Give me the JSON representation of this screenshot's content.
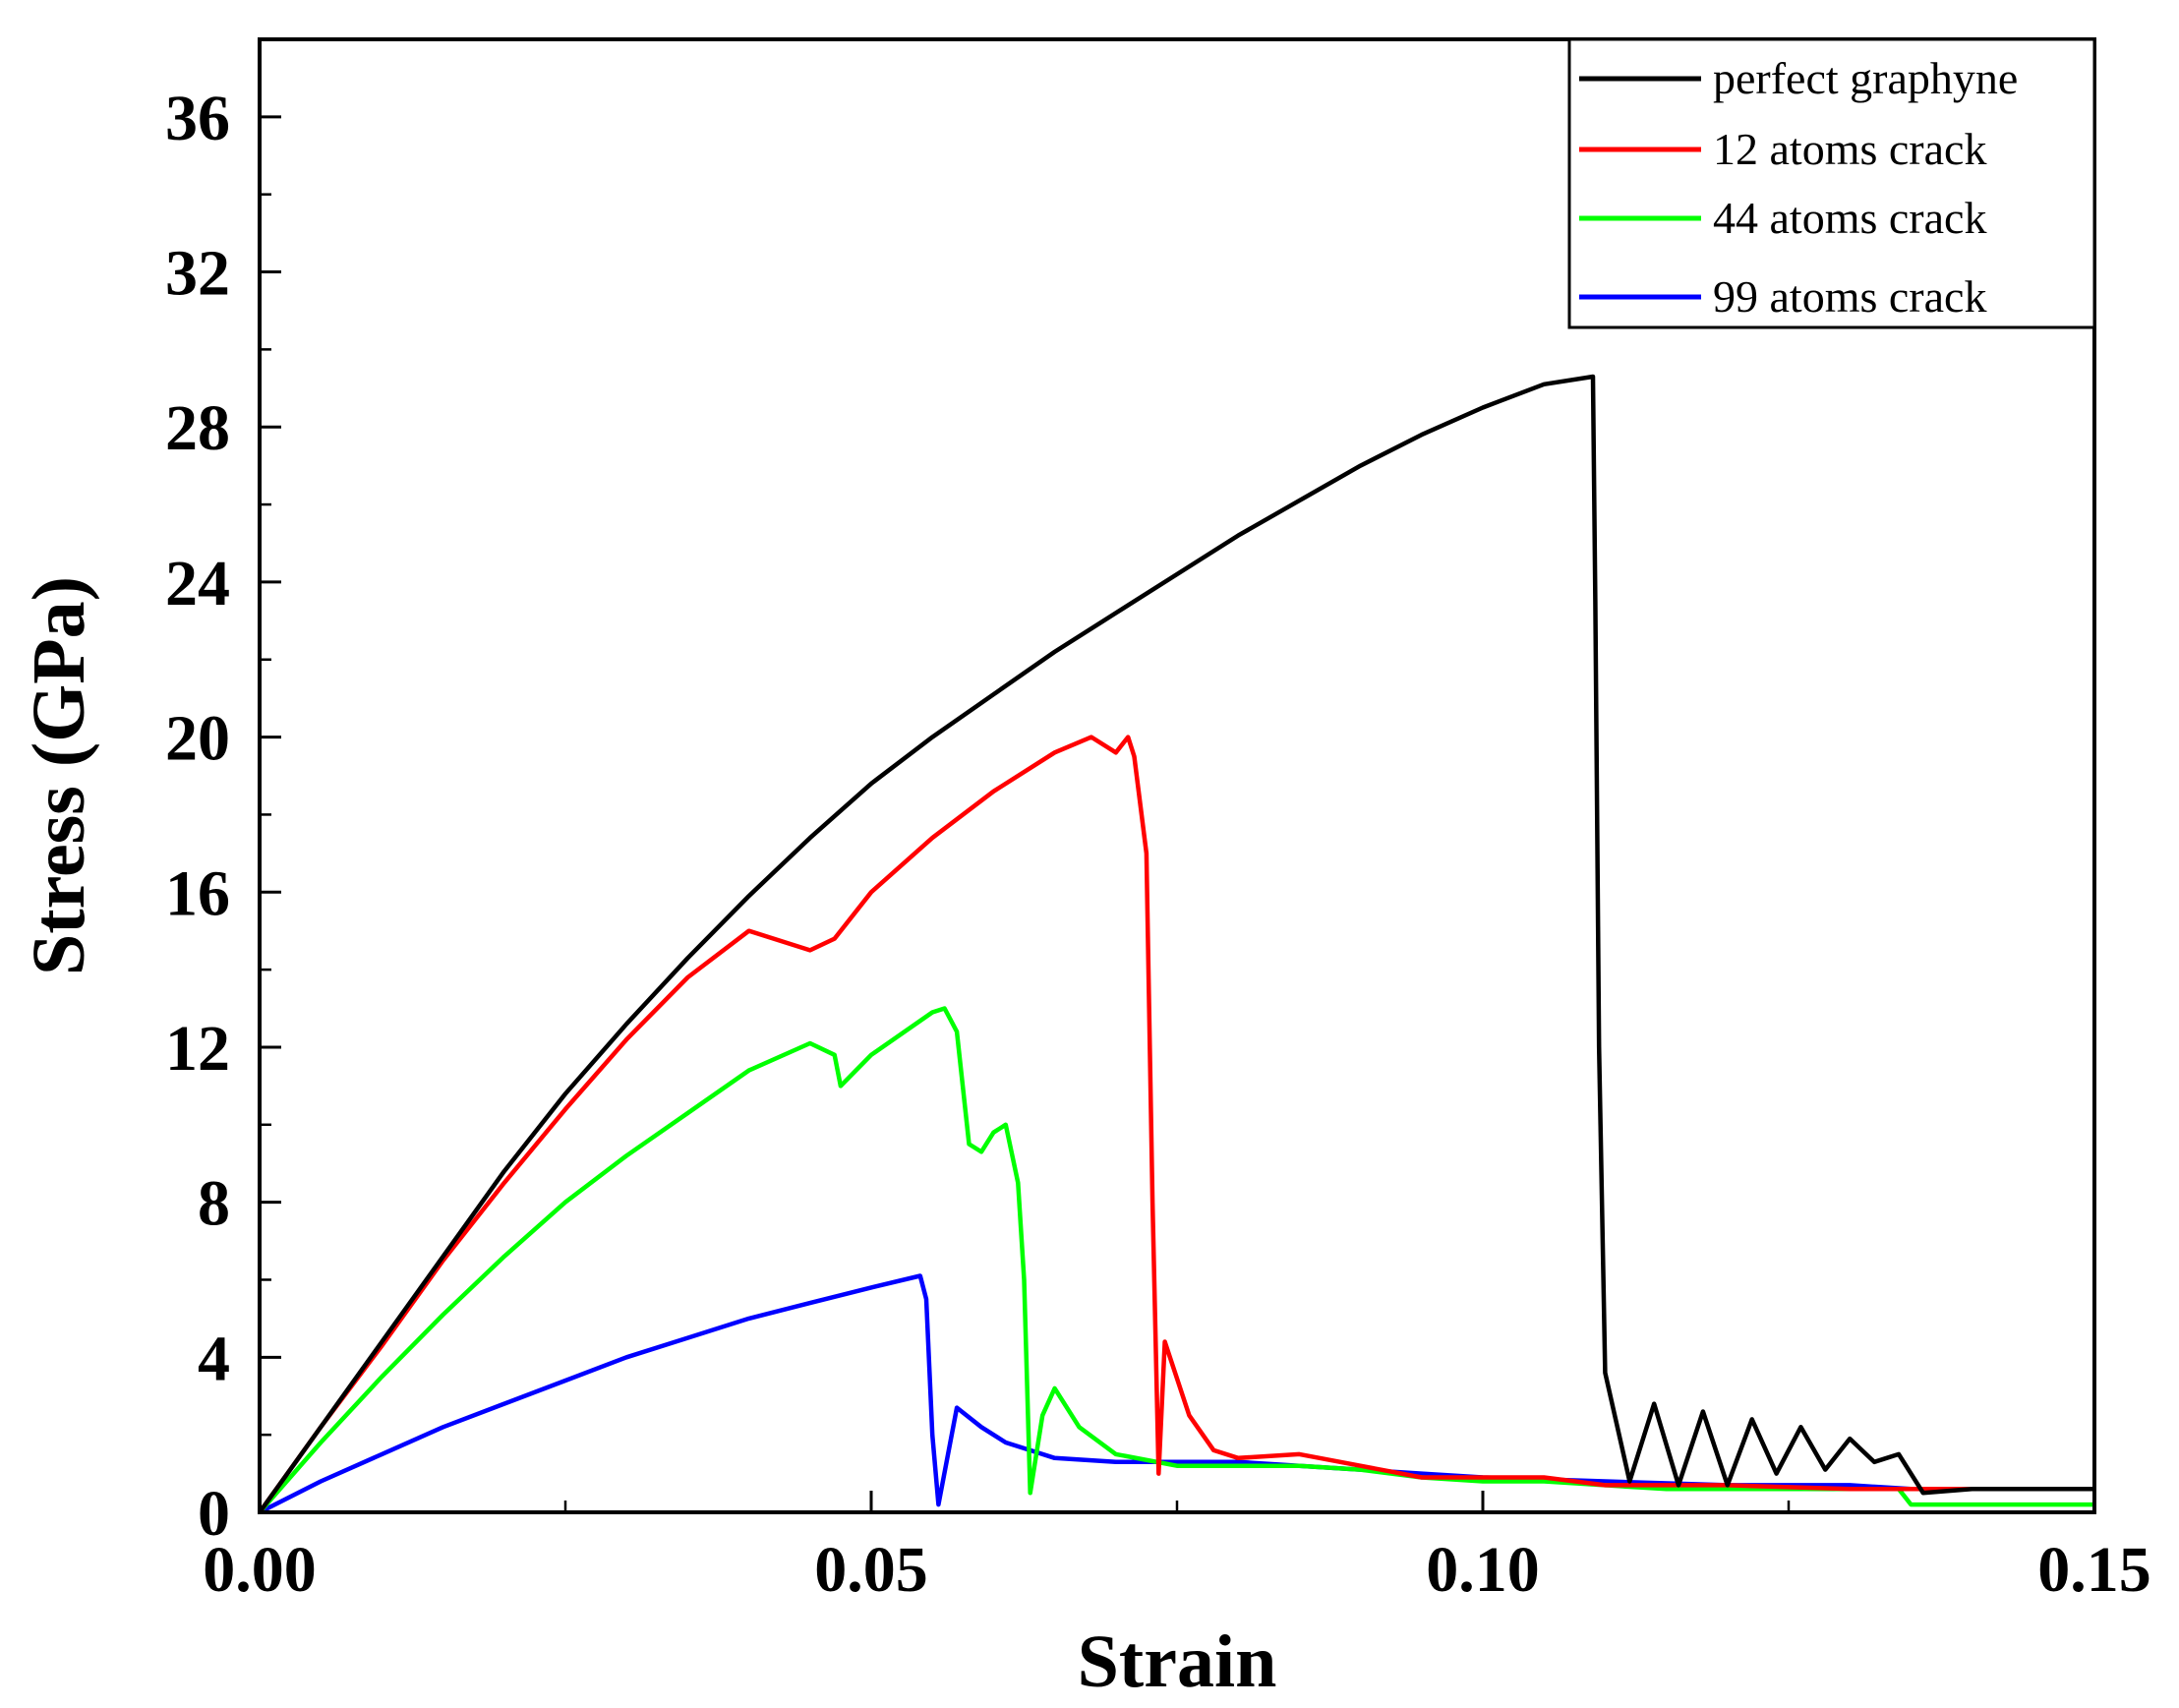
{
  "chart_data": {
    "type": "line",
    "title": "",
    "xlabel": "Strain",
    "ylabel": "Stress (GPa)",
    "xlim": [
      0,
      0.15
    ],
    "ylim": [
      0,
      38
    ],
    "xticks": [
      0.0,
      0.05,
      0.1,
      0.15
    ],
    "xtick_labels": [
      "0.00",
      "0.05",
      "0.10",
      "0.15"
    ],
    "yticks": [
      0,
      4,
      8,
      12,
      16,
      20,
      24,
      28,
      32,
      36
    ],
    "ytick_labels": [
      "0",
      "4",
      "8",
      "12",
      "16",
      "20",
      "24",
      "28",
      "32",
      "36"
    ],
    "legend_position": "top-right",
    "series": [
      {
        "name": "perfect graphyne",
        "color": "#000000",
        "x": [
          0,
          0.005,
          0.01,
          0.015,
          0.02,
          0.025,
          0.03,
          0.035,
          0.04,
          0.045,
          0.05,
          0.055,
          0.06,
          0.065,
          0.07,
          0.075,
          0.08,
          0.085,
          0.09,
          0.095,
          0.1,
          0.105,
          0.109,
          0.1092,
          0.1095,
          0.11,
          0.112,
          0.114,
          0.116,
          0.118,
          0.12,
          0.122,
          0.124,
          0.126,
          0.128,
          0.13,
          0.132,
          0.134,
          0.136,
          0.14,
          0.145,
          0.15
        ],
        "y": [
          0,
          2.2,
          4.4,
          6.6,
          8.8,
          10.8,
          12.6,
          14.3,
          15.9,
          17.4,
          18.8,
          20.0,
          21.1,
          22.2,
          23.2,
          24.2,
          25.2,
          26.1,
          27.0,
          27.8,
          28.5,
          29.1,
          29.3,
          23.5,
          12.0,
          3.6,
          0.8,
          2.8,
          0.7,
          2.6,
          0.7,
          2.4,
          1.0,
          2.2,
          1.1,
          1.9,
          1.3,
          1.5,
          0.5,
          0.6,
          0.6,
          0.6
        ]
      },
      {
        "name": "12 atoms crack",
        "color": "#ff0000",
        "x": [
          0,
          0.005,
          0.01,
          0.015,
          0.02,
          0.025,
          0.03,
          0.035,
          0.04,
          0.045,
          0.047,
          0.05,
          0.055,
          0.06,
          0.065,
          0.068,
          0.07,
          0.071,
          0.0715,
          0.0725,
          0.073,
          0.0735,
          0.074,
          0.076,
          0.078,
          0.08,
          0.085,
          0.09,
          0.095,
          0.1,
          0.105,
          0.11,
          0.12,
          0.13,
          0.14,
          0.15
        ],
        "y": [
          0,
          2.2,
          4.3,
          6.5,
          8.5,
          10.4,
          12.2,
          13.8,
          15.0,
          14.5,
          14.8,
          16.0,
          17.4,
          18.6,
          19.6,
          20.0,
          19.6,
          20.0,
          19.5,
          17.0,
          8.0,
          1.0,
          4.4,
          2.5,
          1.6,
          1.4,
          1.5,
          1.2,
          0.9,
          0.9,
          0.9,
          0.7,
          0.7,
          0.6,
          0.6,
          0.6
        ]
      },
      {
        "name": "44 atoms crack",
        "color": "#00ff00",
        "x": [
          0,
          0.005,
          0.01,
          0.015,
          0.02,
          0.025,
          0.03,
          0.035,
          0.04,
          0.045,
          0.047,
          0.0475,
          0.05,
          0.055,
          0.056,
          0.057,
          0.058,
          0.059,
          0.06,
          0.061,
          0.062,
          0.0625,
          0.063,
          0.064,
          0.065,
          0.067,
          0.07,
          0.075,
          0.08,
          0.085,
          0.09,
          0.095,
          0.1,
          0.105,
          0.11,
          0.115,
          0.12,
          0.125,
          0.13,
          0.134,
          0.135,
          0.14,
          0.15
        ],
        "y": [
          0,
          1.8,
          3.5,
          5.1,
          6.6,
          8.0,
          9.2,
          10.3,
          11.4,
          12.1,
          11.8,
          11.0,
          11.8,
          12.9,
          13.0,
          12.4,
          9.5,
          9.3,
          9.8,
          10.0,
          8.5,
          6.0,
          0.5,
          2.5,
          3.2,
          2.2,
          1.5,
          1.2,
          1.2,
          1.2,
          1.1,
          0.9,
          0.8,
          0.8,
          0.7,
          0.6,
          0.6,
          0.6,
          0.6,
          0.6,
          0.2,
          0.2,
          0.2
        ]
      },
      {
        "name": "99 atoms crack",
        "color": "#0000ff",
        "x": [
          0,
          0.005,
          0.01,
          0.015,
          0.02,
          0.025,
          0.03,
          0.035,
          0.04,
          0.045,
          0.05,
          0.054,
          0.0545,
          0.055,
          0.0555,
          0.057,
          0.059,
          0.061,
          0.063,
          0.065,
          0.07,
          0.075,
          0.08,
          0.085,
          0.09,
          0.095,
          0.1,
          0.11,
          0.12,
          0.13,
          0.135,
          0.14,
          0.145,
          0.15
        ],
        "y": [
          0,
          0.8,
          1.5,
          2.2,
          2.8,
          3.4,
          4.0,
          4.5,
          5.0,
          5.4,
          5.8,
          6.1,
          5.5,
          2.0,
          0.2,
          2.7,
          2.2,
          1.8,
          1.6,
          1.4,
          1.3,
          1.3,
          1.3,
          1.2,
          1.1,
          1.0,
          0.9,
          0.8,
          0.7,
          0.7,
          0.6,
          0.6,
          0.6,
          0.6
        ]
      }
    ]
  }
}
